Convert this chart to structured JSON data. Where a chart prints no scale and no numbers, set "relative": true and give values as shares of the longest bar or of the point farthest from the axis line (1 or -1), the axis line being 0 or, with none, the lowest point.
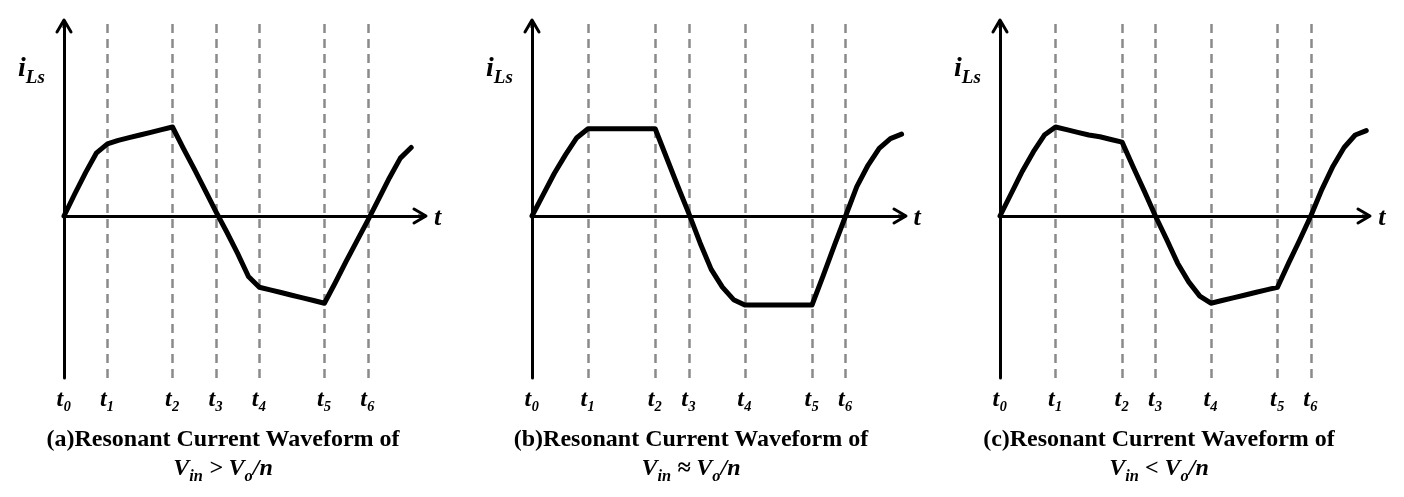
{
  "chart_data": [
    {
      "type": "line",
      "title": "(a)Resonant Current Waveform of\nV$_{in}$ > V$_{o}$/n",
      "xlabel": "t",
      "ylabel": "i$_{Ls}$",
      "relative": true,
      "grid": "x",
      "color": "#000000",
      "categories": [
        "t₀",
        null,
        null,
        null,
        "t₁",
        null,
        null,
        null,
        null,
        null,
        "t₂",
        null,
        null,
        null,
        "t₃",
        null,
        null,
        null,
        "t₄",
        null,
        null,
        null,
        null,
        null,
        "t₅",
        null,
        null,
        null,
        "t₆",
        null,
        null,
        null,
        null,
        null
      ],
      "values": [
        0,
        0.25,
        0.49,
        0.71,
        0.81,
        0.85,
        0.88,
        0.91,
        0.94,
        0.97,
        1,
        0.76,
        0.53,
        0.29,
        0.05,
        -0.18,
        -0.42,
        -0.68,
        -0.8,
        -0.83,
        -0.86,
        -0.89,
        -0.92,
        -0.95,
        -0.98,
        -0.75,
        -0.51,
        -0.28,
        -0.05,
        0.19,
        0.43,
        0.65,
        0.77,
        null
      ]
    },
    {
      "type": "line",
      "title": "(b)Resonant Current Waveform of\nV$_{in}$ ≈ V$_{o}$/n",
      "xlabel": "t",
      "ylabel": "i$_{Ls}$",
      "relative": true,
      "grid": "x",
      "color": "#000000",
      "categories": [
        "t₀",
        null,
        null,
        null,
        null,
        "t₁",
        null,
        null,
        null,
        null,
        null,
        "t₂",
        null,
        null,
        "t₃",
        null,
        null,
        null,
        null,
        "t₄",
        null,
        null,
        null,
        null,
        null,
        "t₅",
        null,
        null,
        "t₆",
        null,
        null,
        null,
        null,
        null
      ],
      "values": [
        0,
        0.24,
        0.48,
        0.69,
        0.88,
        0.98,
        0.98,
        0.98,
        0.98,
        0.98,
        0.98,
        0.98,
        0.66,
        0.34,
        0.03,
        -0.3,
        -0.6,
        -0.8,
        -0.94,
        -1,
        -1,
        -1,
        -1,
        -1,
        -1,
        -1,
        -0.67,
        -0.33,
        0,
        0.33,
        0.57,
        0.76,
        0.87,
        0.92
      ]
    },
    {
      "type": "line",
      "title": "(c)Resonant Current Waveform of\nV$_{in}$ < V$_{o}$/n",
      "xlabel": "t",
      "ylabel": "i$_{Ls}$",
      "relative": true,
      "grid": "x",
      "color": "#000000",
      "categories": [
        "t₀",
        null,
        null,
        null,
        null,
        "t₁",
        null,
        null,
        null,
        null,
        null,
        "t₂",
        null,
        null,
        "t₃",
        null,
        null,
        null,
        null,
        "t₄",
        null,
        null,
        null,
        null,
        null,
        "t₅",
        null,
        null,
        "t₆",
        null,
        null,
        null,
        null,
        null
      ],
      "values": [
        0,
        0.25,
        0.5,
        0.72,
        0.91,
        1,
        0.97,
        0.94,
        0.91,
        0.89,
        0.86,
        0.83,
        0.55,
        0.28,
        0,
        -0.26,
        -0.53,
        -0.74,
        -0.9,
        -0.98,
        -0.95,
        -0.92,
        -0.89,
        -0.86,
        -0.83,
        -0.8,
        -0.53,
        -0.27,
        0,
        0.3,
        0.56,
        0.77,
        0.91,
        0.96
      ]
    }
  ]
}
